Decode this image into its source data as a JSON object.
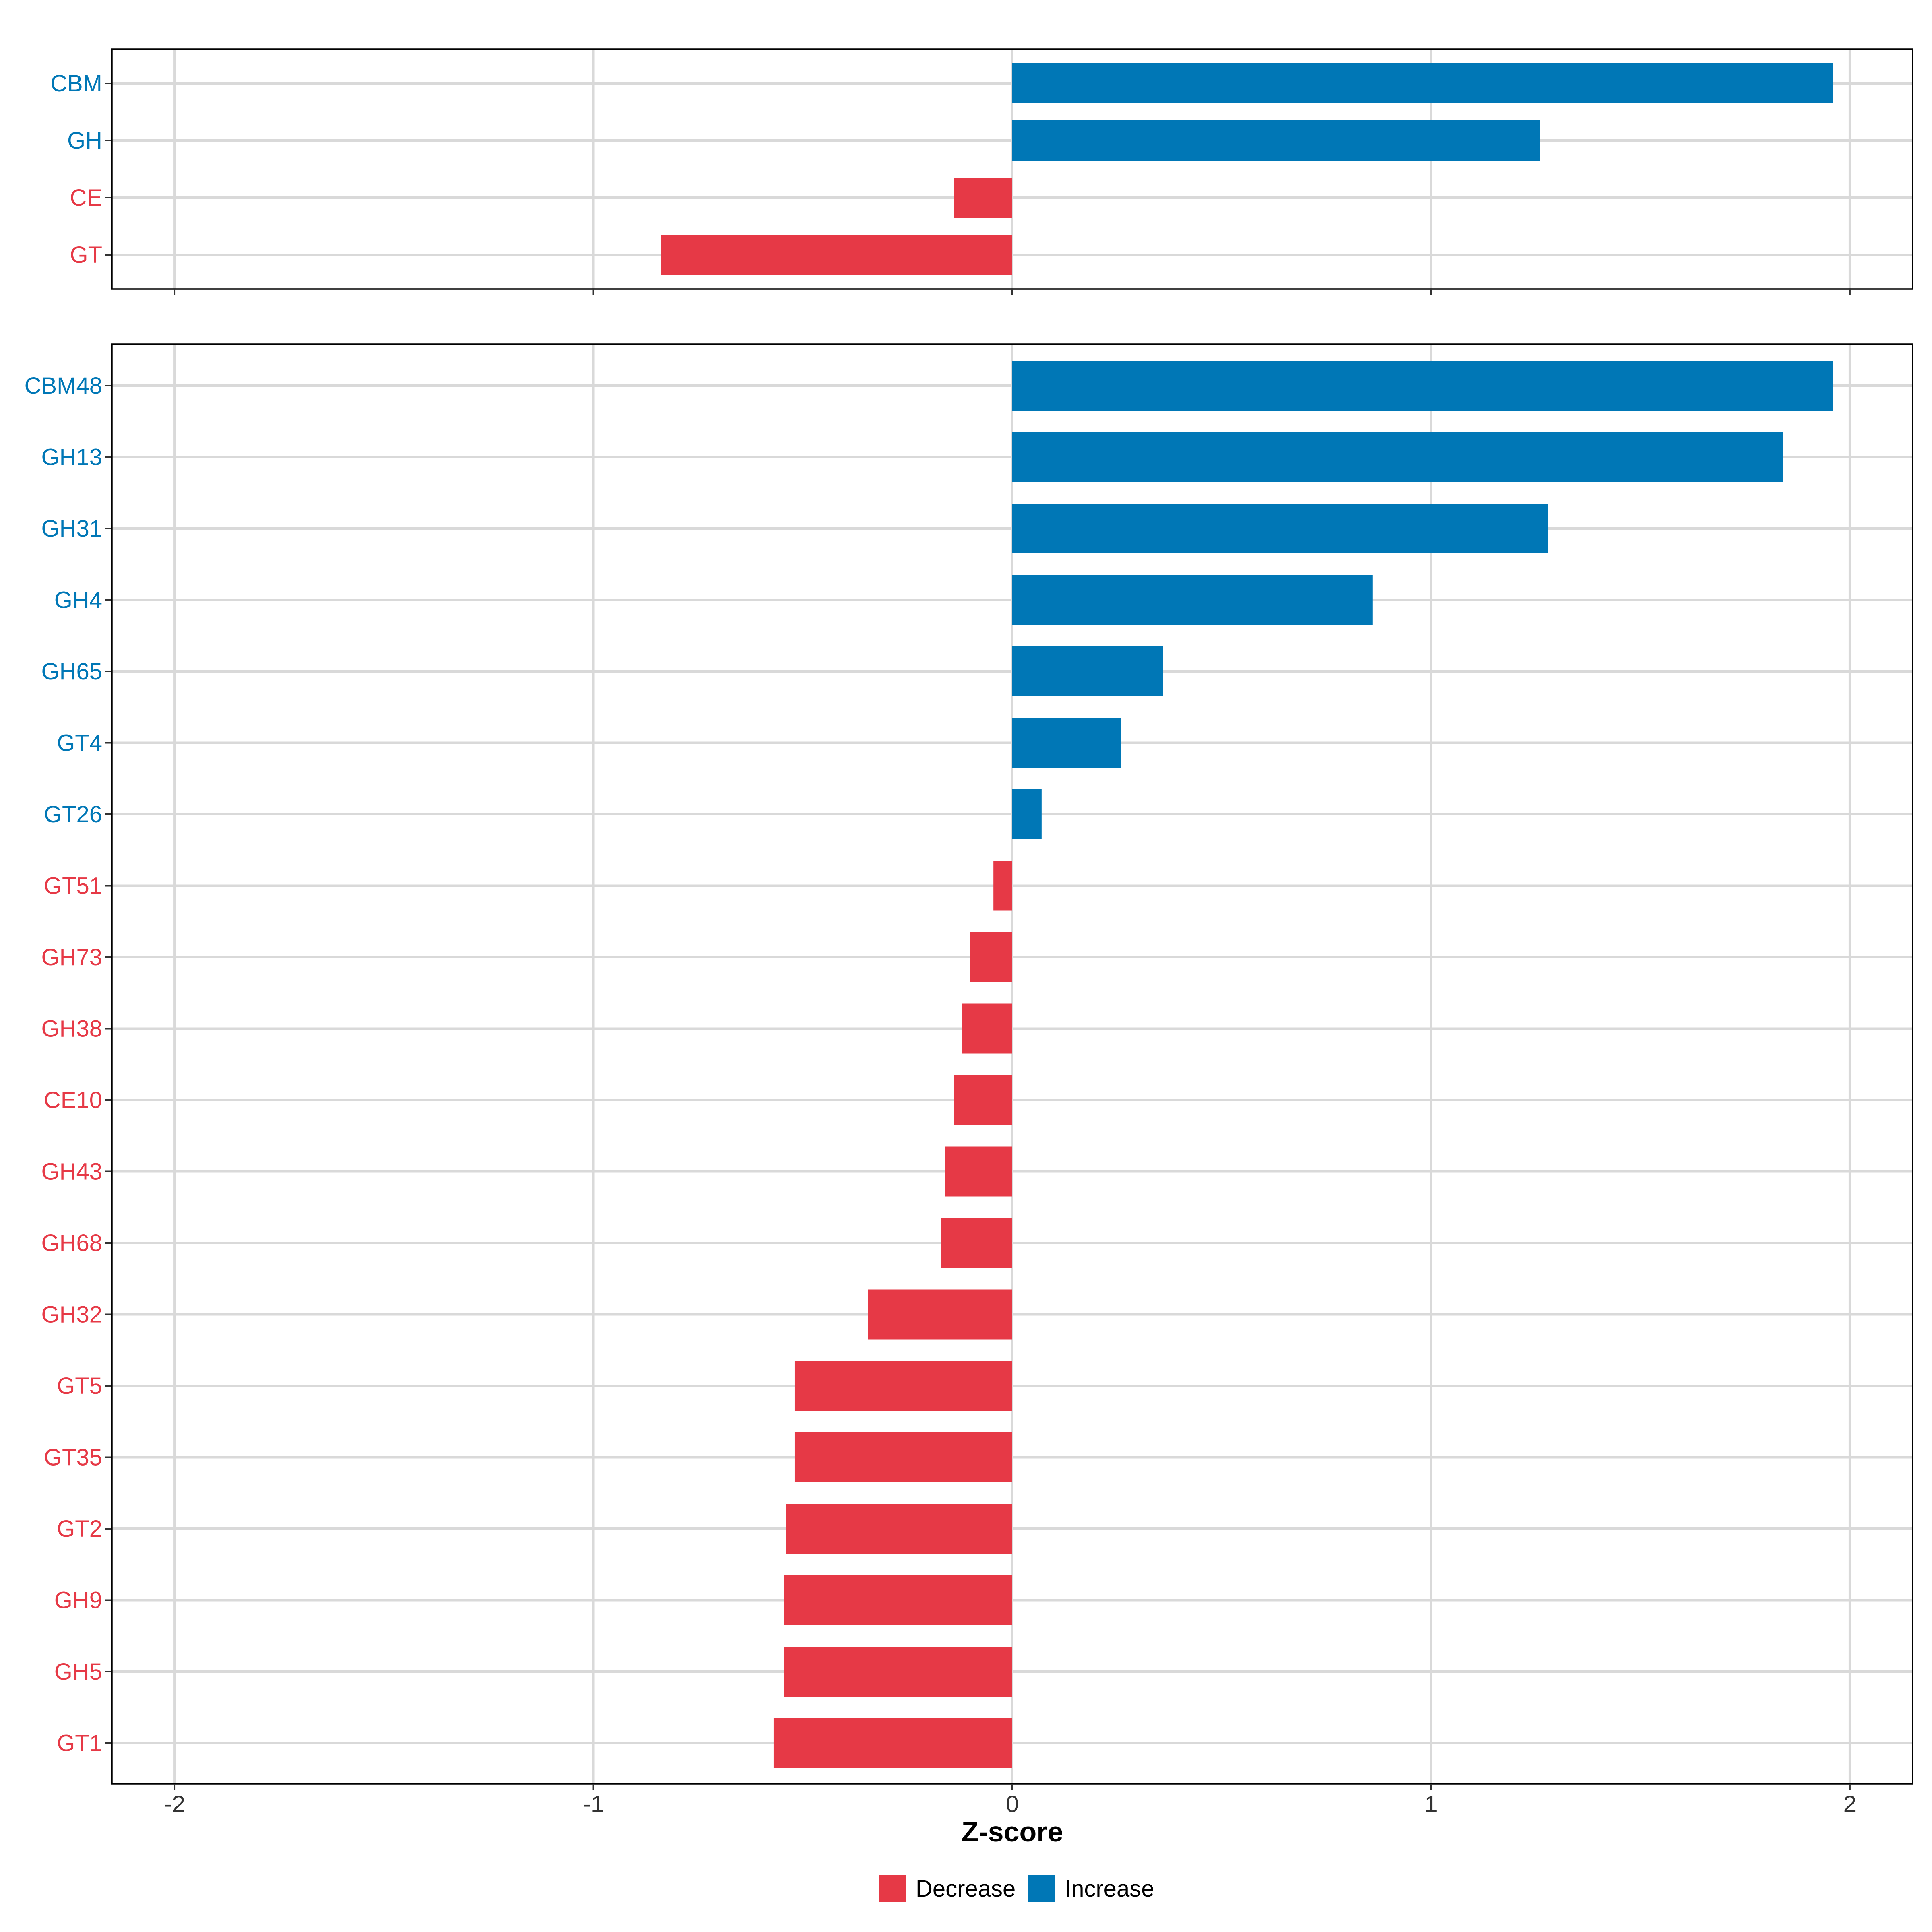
{
  "chart_data": [
    {
      "type": "bar",
      "orientation": "horizontal",
      "panel": "top",
      "categories": [
        "CBM",
        "GH",
        "CE",
        "GT"
      ],
      "values": [
        1.96,
        1.26,
        -0.14,
        -0.84
      ],
      "xlim": [
        -2.15,
        2.15
      ]
    },
    {
      "type": "bar",
      "orientation": "horizontal",
      "panel": "bottom",
      "categories": [
        "CBM48",
        "GH13",
        "GH31",
        "GH4",
        "GH65",
        "GT4",
        "GT26",
        "GT51",
        "GH73",
        "GH38",
        "CE10",
        "GH43",
        "GH68",
        "GH32",
        "GT5",
        "GT35",
        "GT2",
        "GH9",
        "GH5",
        "GT1"
      ],
      "values": [
        1.96,
        1.84,
        1.28,
        0.86,
        0.36,
        0.26,
        0.07,
        -0.045,
        -0.1,
        -0.12,
        -0.14,
        -0.16,
        -0.17,
        -0.345,
        -0.52,
        -0.52,
        -0.54,
        -0.545,
        -0.545,
        -0.57
      ],
      "xlim": [
        -2.15,
        2.15
      ],
      "xticks": [
        -2,
        -1,
        0,
        1,
        2
      ],
      "xtick_labels": [
        "-2",
        "-1",
        "0",
        "1",
        "2"
      ],
      "xlabel": "Z-score"
    }
  ],
  "legend": {
    "items": [
      {
        "label": "Decrease",
        "color": "#e63946"
      },
      {
        "label": "Increase",
        "color": "#0077b6"
      }
    ]
  },
  "colors": {
    "increase": "#0077b6",
    "decrease": "#e63946"
  }
}
